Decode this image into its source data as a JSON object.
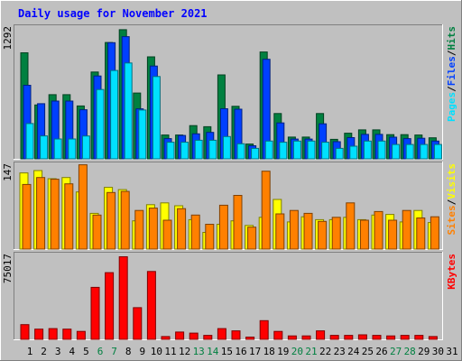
{
  "chart_data": [
    {
      "type": "bar",
      "title": "Daily usage for November 2021",
      "categories": [
        "1",
        "2",
        "3",
        "4",
        "5",
        "6",
        "7",
        "8",
        "9",
        "10",
        "11",
        "12",
        "13",
        "14",
        "15",
        "16",
        "17",
        "18",
        "19",
        "20",
        "21",
        "22",
        "23",
        "24",
        "25",
        "26",
        "27",
        "28",
        "29",
        "30",
        "31"
      ],
      "weekend_days": [
        "6",
        "7",
        "13",
        "14",
        "20",
        "21",
        "27",
        "28"
      ],
      "y_max_label": "1292",
      "ylim": [
        0,
        1292
      ],
      "axis_label_parts": [
        "Pages",
        "/",
        "Files",
        "/",
        "Hits"
      ],
      "series": [
        {
          "name": "Hits",
          "color": "#008040",
          "values": [
            1040,
            528,
            629,
            629,
            519,
            851,
            1141,
            1266,
            645,
            1000,
            234,
            234,
            326,
            315,
            823,
            515,
            145,
            1048,
            444,
            213,
            213,
            444,
            191,
            251,
            284,
            284,
            237,
            237,
            234,
            206,
            0
          ]
        },
        {
          "name": "Files",
          "color": "#0040ff",
          "values": [
            721,
            541,
            566,
            566,
            481,
            812,
            1139,
            1198,
            490,
            910,
            198,
            229,
            245,
            259,
            491,
            487,
            128,
            976,
            352,
            194,
            194,
            343,
            168,
            208,
            240,
            240,
            212,
            198,
            202,
            174,
            0
          ]
        },
        {
          "name": "Pages",
          "color": "#00e0ff",
          "values": [
            346,
            225,
            195,
            195,
            224,
            680,
            866,
            940,
            479,
            807,
            163,
            163,
            182,
            182,
            219,
            148,
            103,
            174,
            163,
            174,
            174,
            163,
            103,
            124,
            174,
            174,
            141,
            141,
            141,
            141,
            0
          ]
        }
      ]
    },
    {
      "type": "bar",
      "categories": [
        "1",
        "2",
        "3",
        "4",
        "5",
        "6",
        "7",
        "8",
        "9",
        "10",
        "11",
        "12",
        "13",
        "14",
        "15",
        "16",
        "17",
        "18",
        "19",
        "20",
        "21",
        "22",
        "23",
        "24",
        "25",
        "26",
        "27",
        "28",
        "29",
        "30",
        "31"
      ],
      "y_max_label": "147",
      "ylim": [
        0,
        147
      ],
      "axis_label_parts": [
        "Sites",
        "/",
        "Visits"
      ],
      "series": [
        {
          "name": "Visits",
          "color": "#ffff00",
          "values": [
            132,
            136,
            122,
            124,
            99,
            62,
            107,
            103,
            49,
            77,
            80,
            75,
            51,
            29,
            43,
            49,
            41,
            55,
            86,
            47,
            56,
            51,
            51,
            55,
            51,
            59,
            60,
            47,
            67,
            46,
            0
          ]
        },
        {
          "name": "Sites",
          "color": "#ff8000",
          "values": [
            112,
            124,
            121,
            113,
            146,
            59,
            98,
            100,
            67,
            71,
            50,
            70,
            59,
            43,
            76,
            93,
            38,
            135,
            61,
            67,
            62,
            48,
            55,
            80,
            50,
            65,
            50,
            67,
            54,
            56,
            0
          ]
        }
      ]
    },
    {
      "type": "bar",
      "categories": [
        "1",
        "2",
        "3",
        "4",
        "5",
        "6",
        "7",
        "8",
        "9",
        "10",
        "11",
        "12",
        "13",
        "14",
        "15",
        "16",
        "17",
        "18",
        "19",
        "20",
        "21",
        "22",
        "23",
        "24",
        "25",
        "26",
        "27",
        "28",
        "29",
        "30",
        "31"
      ],
      "y_max_label": "75017",
      "ylim": [
        0,
        75017
      ],
      "axis_label_parts": [
        "KBytes"
      ],
      "series": [
        {
          "name": "KBytes",
          "color": "#ff0000",
          "values": [
            13000,
            9000,
            9500,
            9000,
            7000,
            46000,
            59000,
            73000,
            28000,
            60000,
            2500,
            6500,
            5500,
            3500,
            9500,
            7500,
            2000,
            16500,
            7000,
            3000,
            3000,
            7500,
            3500,
            3500,
            4000,
            3500,
            3000,
            3500,
            3500,
            2500,
            0
          ]
        }
      ]
    }
  ]
}
